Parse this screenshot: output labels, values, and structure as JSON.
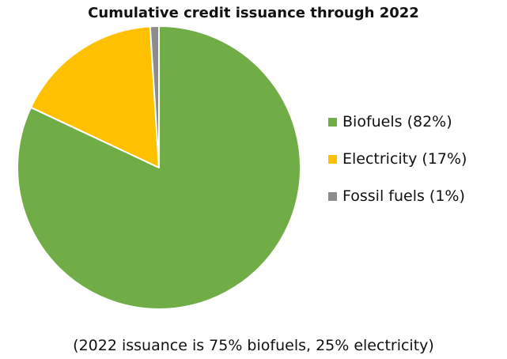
{
  "chart_data": {
    "type": "pie",
    "title": "Cumulative credit issuance through 2022",
    "slices": [
      {
        "label": "Biofuels (82%)",
        "value": 82,
        "color": "#70AD47"
      },
      {
        "label": "Electricity (17%)",
        "value": 17,
        "color": "#FFC000"
      },
      {
        "label": "Fossil fuels (1%)",
        "value": 1,
        "color": "#8C8C8C"
      }
    ],
    "start_angle_deg": 0,
    "direction": "clockwise",
    "legend_position": "right",
    "footnote": "(2022 issuance is 75% biofuels, 25% electricity)"
  }
}
